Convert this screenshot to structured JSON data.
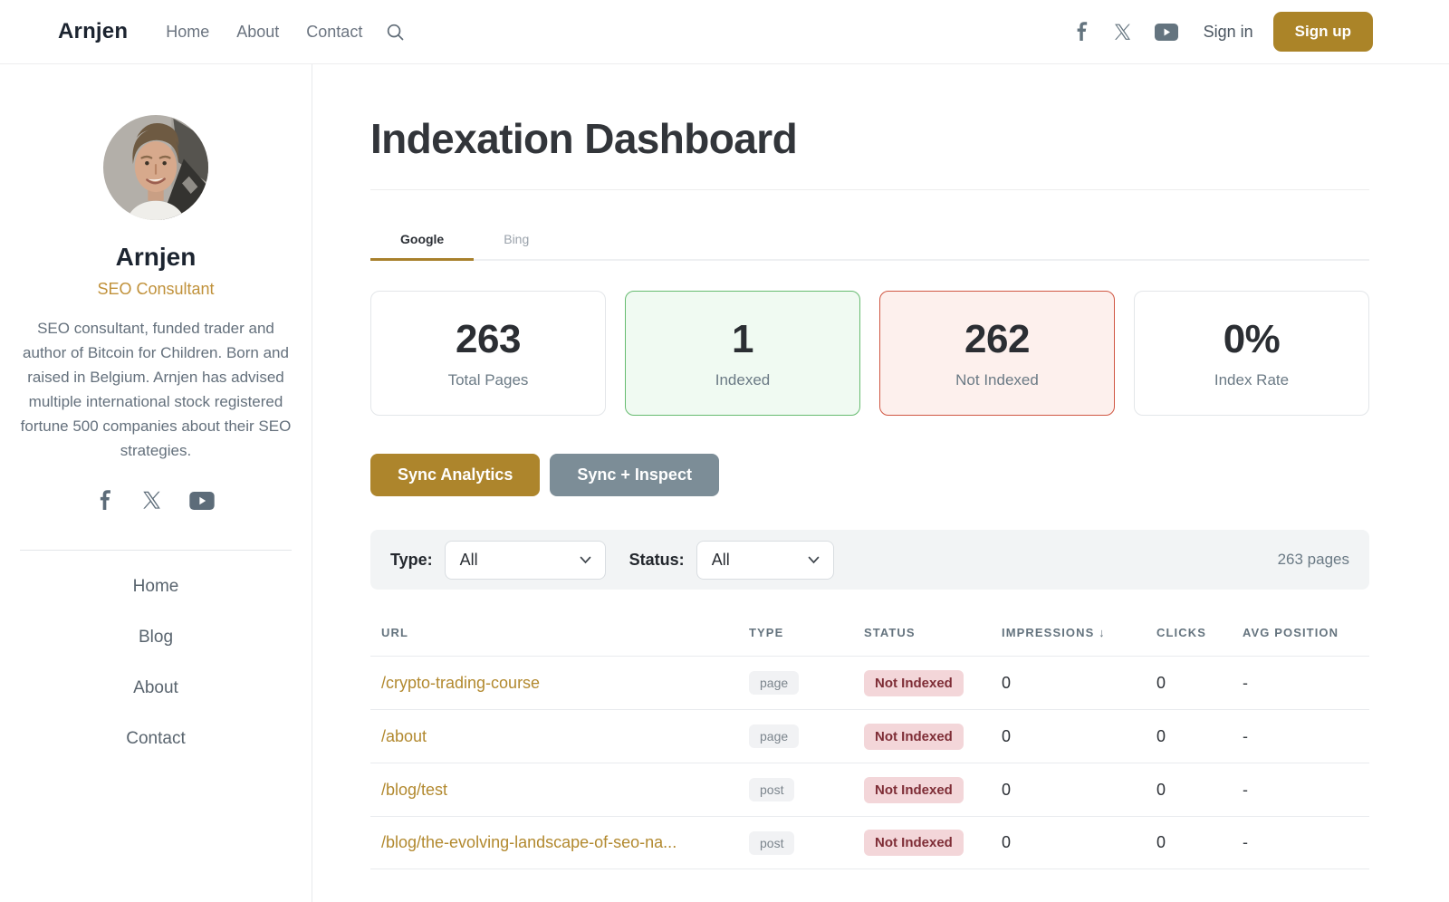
{
  "topnav": {
    "logo": "Arnjen",
    "links": [
      "Home",
      "About",
      "Contact"
    ],
    "signin": "Sign in",
    "signup": "Sign up"
  },
  "sidebar": {
    "name": "Arnjen",
    "role": "SEO Consultant",
    "bio": "SEO consultant, funded trader and author of Bitcoin for Children. Born and raised in Belgium. Arnjen has advised multiple international stock registered fortune 500 companies about their SEO strategies.",
    "nav": [
      "Home",
      "Blog",
      "About",
      "Contact"
    ]
  },
  "main": {
    "title": "Indexation Dashboard",
    "tabs": [
      {
        "label": "Google",
        "active": true
      },
      {
        "label": "Bing",
        "active": false
      }
    ],
    "stats": [
      {
        "value": "263",
        "label": "Total Pages",
        "variant": "default"
      },
      {
        "value": "1",
        "label": "Indexed",
        "variant": "green"
      },
      {
        "value": "262",
        "label": "Not Indexed",
        "variant": "red"
      },
      {
        "value": "0%",
        "label": "Index Rate",
        "variant": "default"
      }
    ],
    "buttons": {
      "sync_analytics": "Sync Analytics",
      "sync_inspect": "Sync + Inspect"
    },
    "filters": {
      "type_label": "Type:",
      "type_value": "All",
      "status_label": "Status:",
      "status_value": "All",
      "count": "263 pages"
    },
    "table": {
      "headers": [
        "URL",
        "Type",
        "Status",
        "Impressions ↓",
        "Clicks",
        "Avg Position"
      ],
      "rows": [
        {
          "url": "/crypto-trading-course",
          "type": "page",
          "status": "Not Indexed",
          "impressions": "0",
          "clicks": "0",
          "avg_position": "-"
        },
        {
          "url": "/about",
          "type": "page",
          "status": "Not Indexed",
          "impressions": "0",
          "clicks": "0",
          "avg_position": "-"
        },
        {
          "url": "/blog/test",
          "type": "post",
          "status": "Not Indexed",
          "impressions": "0",
          "clicks": "0",
          "avg_position": "-"
        },
        {
          "url": "/blog/the-evolving-landscape-of-seo-na...",
          "type": "post",
          "status": "Not Indexed",
          "impressions": "0",
          "clicks": "0",
          "avg_position": "-"
        }
      ]
    }
  },
  "icons": {
    "search": "search-icon",
    "facebook": "facebook-icon",
    "x": "x-icon",
    "youtube": "youtube-icon",
    "chevron_down": "chevron-down-icon",
    "sort_desc_arrow": "↓"
  },
  "colors": {
    "accent_gold": "#ab8428",
    "link_gold": "#b2892f",
    "slate_button": "#7c8d97",
    "green_card_bg": "#f0faf2",
    "green_card_border": "#66bb70",
    "red_card_bg": "#fdf0ed",
    "red_card_border": "#d05743",
    "status_badge_bg": "#f3d6d9",
    "status_badge_text": "#7e2d36",
    "type_badge_bg": "#f1f2f4",
    "filterbar_bg": "#f2f4f5"
  }
}
